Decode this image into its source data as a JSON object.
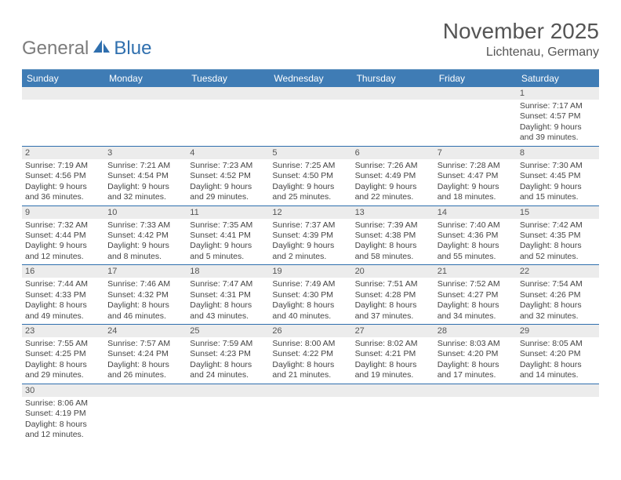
{
  "brand": {
    "general": "General",
    "blue": "Blue"
  },
  "colors": {
    "header_bg": "#3f7cb5",
    "header_text": "#ffffff",
    "rule": "#7aa4c9",
    "row_border": "#2f6fae",
    "daynum_bg": "#ececec",
    "text": "#444444",
    "logo_gray": "#7c7c7c",
    "logo_blue": "#2f6fae"
  },
  "title": "November 2025",
  "location": "Lichtenau, Germany",
  "day_headers": [
    "Sunday",
    "Monday",
    "Tuesday",
    "Wednesday",
    "Thursday",
    "Friday",
    "Saturday"
  ],
  "weeks": [
    [
      null,
      null,
      null,
      null,
      null,
      null,
      {
        "n": "1",
        "sr": "Sunrise: 7:17 AM",
        "ss": "Sunset: 4:57 PM",
        "d1": "Daylight: 9 hours",
        "d2": "and 39 minutes."
      }
    ],
    [
      {
        "n": "2",
        "sr": "Sunrise: 7:19 AM",
        "ss": "Sunset: 4:56 PM",
        "d1": "Daylight: 9 hours",
        "d2": "and 36 minutes."
      },
      {
        "n": "3",
        "sr": "Sunrise: 7:21 AM",
        "ss": "Sunset: 4:54 PM",
        "d1": "Daylight: 9 hours",
        "d2": "and 32 minutes."
      },
      {
        "n": "4",
        "sr": "Sunrise: 7:23 AM",
        "ss": "Sunset: 4:52 PM",
        "d1": "Daylight: 9 hours",
        "d2": "and 29 minutes."
      },
      {
        "n": "5",
        "sr": "Sunrise: 7:25 AM",
        "ss": "Sunset: 4:50 PM",
        "d1": "Daylight: 9 hours",
        "d2": "and 25 minutes."
      },
      {
        "n": "6",
        "sr": "Sunrise: 7:26 AM",
        "ss": "Sunset: 4:49 PM",
        "d1": "Daylight: 9 hours",
        "d2": "and 22 minutes."
      },
      {
        "n": "7",
        "sr": "Sunrise: 7:28 AM",
        "ss": "Sunset: 4:47 PM",
        "d1": "Daylight: 9 hours",
        "d2": "and 18 minutes."
      },
      {
        "n": "8",
        "sr": "Sunrise: 7:30 AM",
        "ss": "Sunset: 4:45 PM",
        "d1": "Daylight: 9 hours",
        "d2": "and 15 minutes."
      }
    ],
    [
      {
        "n": "9",
        "sr": "Sunrise: 7:32 AM",
        "ss": "Sunset: 4:44 PM",
        "d1": "Daylight: 9 hours",
        "d2": "and 12 minutes."
      },
      {
        "n": "10",
        "sr": "Sunrise: 7:33 AM",
        "ss": "Sunset: 4:42 PM",
        "d1": "Daylight: 9 hours",
        "d2": "and 8 minutes."
      },
      {
        "n": "11",
        "sr": "Sunrise: 7:35 AM",
        "ss": "Sunset: 4:41 PM",
        "d1": "Daylight: 9 hours",
        "d2": "and 5 minutes."
      },
      {
        "n": "12",
        "sr": "Sunrise: 7:37 AM",
        "ss": "Sunset: 4:39 PM",
        "d1": "Daylight: 9 hours",
        "d2": "and 2 minutes."
      },
      {
        "n": "13",
        "sr": "Sunrise: 7:39 AM",
        "ss": "Sunset: 4:38 PM",
        "d1": "Daylight: 8 hours",
        "d2": "and 58 minutes."
      },
      {
        "n": "14",
        "sr": "Sunrise: 7:40 AM",
        "ss": "Sunset: 4:36 PM",
        "d1": "Daylight: 8 hours",
        "d2": "and 55 minutes."
      },
      {
        "n": "15",
        "sr": "Sunrise: 7:42 AM",
        "ss": "Sunset: 4:35 PM",
        "d1": "Daylight: 8 hours",
        "d2": "and 52 minutes."
      }
    ],
    [
      {
        "n": "16",
        "sr": "Sunrise: 7:44 AM",
        "ss": "Sunset: 4:33 PM",
        "d1": "Daylight: 8 hours",
        "d2": "and 49 minutes."
      },
      {
        "n": "17",
        "sr": "Sunrise: 7:46 AM",
        "ss": "Sunset: 4:32 PM",
        "d1": "Daylight: 8 hours",
        "d2": "and 46 minutes."
      },
      {
        "n": "18",
        "sr": "Sunrise: 7:47 AM",
        "ss": "Sunset: 4:31 PM",
        "d1": "Daylight: 8 hours",
        "d2": "and 43 minutes."
      },
      {
        "n": "19",
        "sr": "Sunrise: 7:49 AM",
        "ss": "Sunset: 4:30 PM",
        "d1": "Daylight: 8 hours",
        "d2": "and 40 minutes."
      },
      {
        "n": "20",
        "sr": "Sunrise: 7:51 AM",
        "ss": "Sunset: 4:28 PM",
        "d1": "Daylight: 8 hours",
        "d2": "and 37 minutes."
      },
      {
        "n": "21",
        "sr": "Sunrise: 7:52 AM",
        "ss": "Sunset: 4:27 PM",
        "d1": "Daylight: 8 hours",
        "d2": "and 34 minutes."
      },
      {
        "n": "22",
        "sr": "Sunrise: 7:54 AM",
        "ss": "Sunset: 4:26 PM",
        "d1": "Daylight: 8 hours",
        "d2": "and 32 minutes."
      }
    ],
    [
      {
        "n": "23",
        "sr": "Sunrise: 7:55 AM",
        "ss": "Sunset: 4:25 PM",
        "d1": "Daylight: 8 hours",
        "d2": "and 29 minutes."
      },
      {
        "n": "24",
        "sr": "Sunrise: 7:57 AM",
        "ss": "Sunset: 4:24 PM",
        "d1": "Daylight: 8 hours",
        "d2": "and 26 minutes."
      },
      {
        "n": "25",
        "sr": "Sunrise: 7:59 AM",
        "ss": "Sunset: 4:23 PM",
        "d1": "Daylight: 8 hours",
        "d2": "and 24 minutes."
      },
      {
        "n": "26",
        "sr": "Sunrise: 8:00 AM",
        "ss": "Sunset: 4:22 PM",
        "d1": "Daylight: 8 hours",
        "d2": "and 21 minutes."
      },
      {
        "n": "27",
        "sr": "Sunrise: 8:02 AM",
        "ss": "Sunset: 4:21 PM",
        "d1": "Daylight: 8 hours",
        "d2": "and 19 minutes."
      },
      {
        "n": "28",
        "sr": "Sunrise: 8:03 AM",
        "ss": "Sunset: 4:20 PM",
        "d1": "Daylight: 8 hours",
        "d2": "and 17 minutes."
      },
      {
        "n": "29",
        "sr": "Sunrise: 8:05 AM",
        "ss": "Sunset: 4:20 PM",
        "d1": "Daylight: 8 hours",
        "d2": "and 14 minutes."
      }
    ],
    [
      {
        "n": "30",
        "sr": "Sunrise: 8:06 AM",
        "ss": "Sunset: 4:19 PM",
        "d1": "Daylight: 8 hours",
        "d2": "and 12 minutes."
      },
      null,
      null,
      null,
      null,
      null,
      null
    ]
  ]
}
